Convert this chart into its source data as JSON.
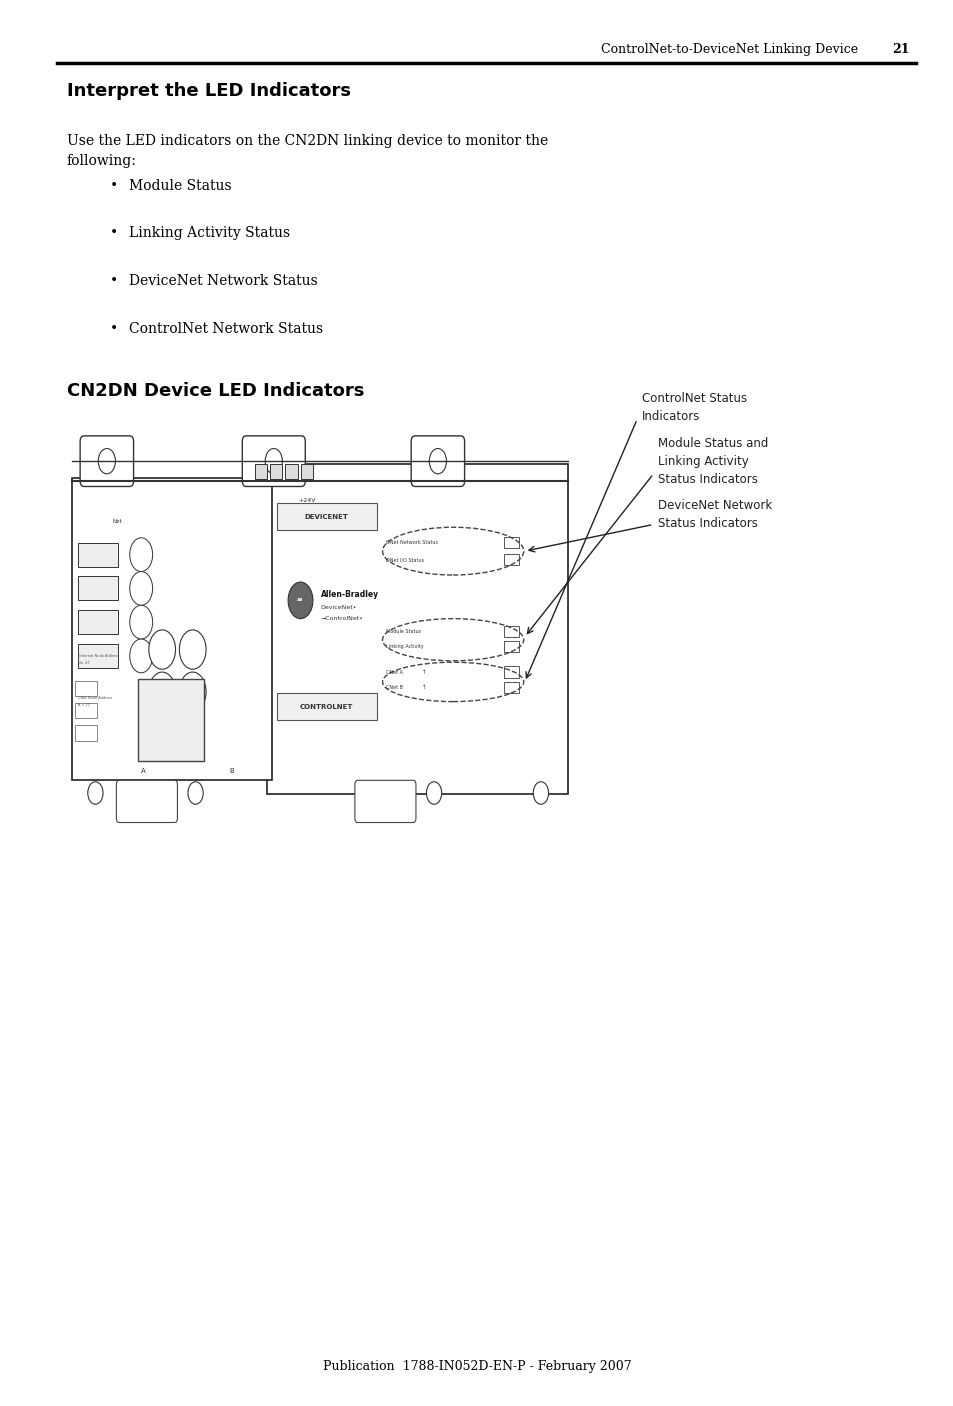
{
  "page_header": "ControlNet-to-DeviceNet Linking Device",
  "page_number": "21",
  "title": "Interpret the LED Indicators",
  "intro_text": "Use the LED indicators on the CN2DN linking device to monitor the\nfollowing:",
  "bullet_items": [
    "Module Status",
    "Linking Activity Status",
    "DeviceNet Network Status",
    "ControlNet Network Status"
  ],
  "section2_title": "CN2DN Device LED Indicators",
  "footer_text": "Publication  1788-IN052D-EN-P - February 2007",
  "bg_color": "#ffffff",
  "text_color": "#000000",
  "header_line_color": "#000000"
}
